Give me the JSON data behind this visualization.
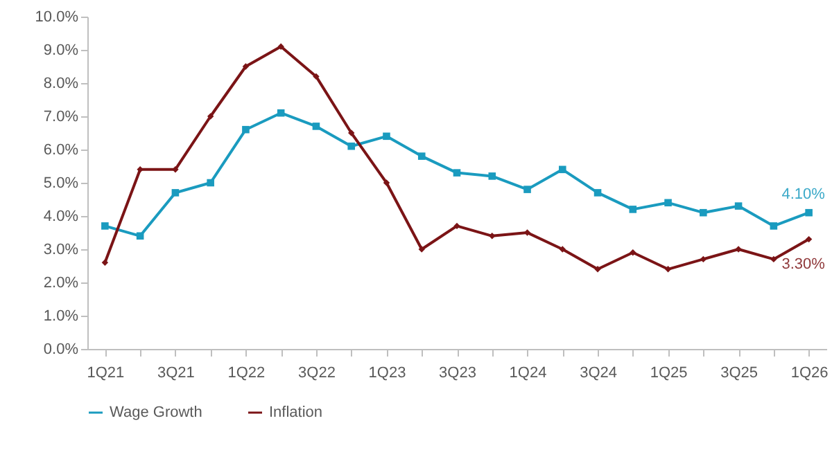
{
  "chart_data": {
    "type": "line",
    "categories": [
      "1Q21",
      null,
      "3Q21",
      null,
      "1Q22",
      null,
      "3Q22",
      null,
      "1Q23",
      null,
      "3Q23",
      null,
      "1Q24",
      null,
      "3Q24",
      null,
      "1Q25",
      null,
      "3Q25",
      null,
      "1Q26"
    ],
    "series": [
      {
        "name": "Wage Growth",
        "color": "#1a9bbf",
        "marker": "square",
        "values": [
          3.7,
          3.4,
          4.7,
          5.0,
          6.6,
          7.1,
          6.7,
          6.1,
          6.4,
          5.8,
          5.3,
          5.2,
          4.8,
          5.4,
          4.7,
          4.2,
          4.4,
          4.1,
          4.3,
          3.7,
          4.1
        ]
      },
      {
        "name": "Inflation",
        "color": "#7b1416",
        "marker": "diamond",
        "values": [
          2.6,
          5.4,
          5.4,
          7.0,
          8.5,
          9.1,
          8.2,
          6.5,
          5.0,
          3.0,
          3.7,
          3.4,
          3.5,
          3.0,
          2.4,
          2.9,
          2.4,
          2.7,
          3.0,
          2.7,
          3.3
        ]
      }
    ],
    "ylim": [
      0,
      10
    ],
    "yticks": [
      {
        "value": 0,
        "label": "0.0%"
      },
      {
        "value": 1,
        "label": "1.0%"
      },
      {
        "value": 2,
        "label": "2.0%"
      },
      {
        "value": 3,
        "label": "3.0%"
      },
      {
        "value": 4,
        "label": "4.0%"
      },
      {
        "value": 5,
        "label": "5.0%"
      },
      {
        "value": 6,
        "label": "6.0%"
      },
      {
        "value": 7,
        "label": "7.0%"
      },
      {
        "value": 8,
        "label": "8.0%"
      },
      {
        "value": 9,
        "label": "9.0%"
      },
      {
        "value": 10,
        "label": "10.0%"
      }
    ],
    "annotations": [
      {
        "text": "4.10%",
        "x": "1Q26",
        "y": 4.1
      },
      {
        "text": "3.30%",
        "x": "1Q26",
        "y": 3.3
      }
    ],
    "grid": false,
    "legend": "bottom",
    "line_style": "solid"
  }
}
